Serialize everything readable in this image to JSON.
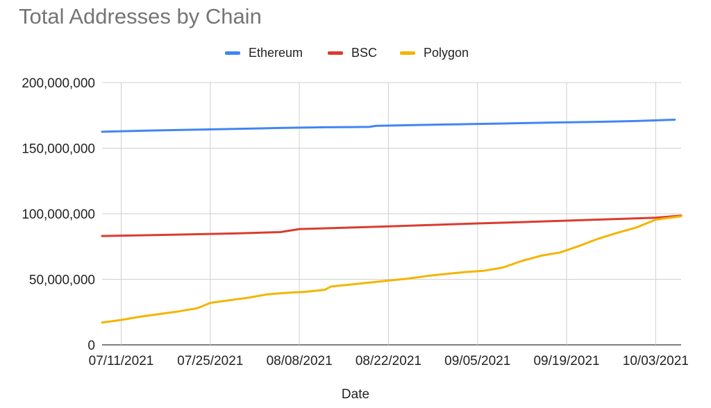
{
  "chart_data": {
    "type": "line",
    "title": "Total Addresses by Chain",
    "xlabel": "Date",
    "ylabel": "",
    "ylim": [
      0,
      200000000
    ],
    "y_ticks": [
      0,
      50000000,
      100000000,
      150000000,
      200000000
    ],
    "y_tick_labels": [
      "0",
      "50,000,000",
      "100,000,000",
      "150,000,000",
      "200,000,000"
    ],
    "x_ticks": [
      "2021-07-11",
      "2021-07-25",
      "2021-08-08",
      "2021-08-22",
      "2021-09-05",
      "2021-09-19",
      "2021-10-03"
    ],
    "x_tick_labels": [
      "07/11/2021",
      "07/25/2021",
      "08/08/2021",
      "08/22/2021",
      "09/05/2021",
      "09/19/2021",
      "10/03/2021"
    ],
    "x_range": [
      "2021-07-08",
      "2021-10-07"
    ],
    "grid": true,
    "legend_position": "top",
    "series": [
      {
        "name": "Ethereum",
        "color": "#4285f4",
        "points": [
          [
            "2021-07-08",
            162500000
          ],
          [
            "2021-07-15",
            163400000
          ],
          [
            "2021-07-22",
            164000000
          ],
          [
            "2021-07-29",
            164700000
          ],
          [
            "2021-08-05",
            165400000
          ],
          [
            "2021-08-12",
            165900000
          ],
          [
            "2021-08-19",
            166200000
          ],
          [
            "2021-08-20",
            167000000
          ],
          [
            "2021-08-26",
            167600000
          ],
          [
            "2021-09-02",
            168200000
          ],
          [
            "2021-09-09",
            168800000
          ],
          [
            "2021-09-16",
            169400000
          ],
          [
            "2021-09-23",
            170000000
          ],
          [
            "2021-09-30",
            170700000
          ],
          [
            "2021-10-06",
            171700000
          ]
        ]
      },
      {
        "name": "BSC",
        "color": "#db3b2f",
        "points": [
          [
            "2021-07-08",
            83000000
          ],
          [
            "2021-07-15",
            83600000
          ],
          [
            "2021-07-22",
            84300000
          ],
          [
            "2021-07-29",
            85000000
          ],
          [
            "2021-08-05",
            86000000
          ],
          [
            "2021-08-08",
            88300000
          ],
          [
            "2021-08-15",
            89300000
          ],
          [
            "2021-08-22",
            90300000
          ],
          [
            "2021-08-29",
            91500000
          ],
          [
            "2021-09-05",
            92600000
          ],
          [
            "2021-09-12",
            93600000
          ],
          [
            "2021-09-19",
            94700000
          ],
          [
            "2021-09-26",
            95800000
          ],
          [
            "2021-10-03",
            97000000
          ],
          [
            "2021-10-07",
            98500000
          ]
        ]
      },
      {
        "name": "Polygon",
        "color": "#f5b400",
        "points": [
          [
            "2021-07-08",
            17000000
          ],
          [
            "2021-07-11",
            19000000
          ],
          [
            "2021-07-14",
            21500000
          ],
          [
            "2021-07-17",
            23500000
          ],
          [
            "2021-07-20",
            25500000
          ],
          [
            "2021-07-23",
            28000000
          ],
          [
            "2021-07-25",
            32000000
          ],
          [
            "2021-07-28",
            34000000
          ],
          [
            "2021-07-31",
            36000000
          ],
          [
            "2021-08-03",
            38500000
          ],
          [
            "2021-08-06",
            39700000
          ],
          [
            "2021-08-09",
            40500000
          ],
          [
            "2021-08-12",
            42000000
          ],
          [
            "2021-08-13",
            44500000
          ],
          [
            "2021-08-16",
            46000000
          ],
          [
            "2021-08-19",
            47500000
          ],
          [
            "2021-08-22",
            49000000
          ],
          [
            "2021-08-25",
            50500000
          ],
          [
            "2021-08-28",
            52500000
          ],
          [
            "2021-08-31",
            54000000
          ],
          [
            "2021-09-03",
            55500000
          ],
          [
            "2021-09-06",
            56500000
          ],
          [
            "2021-09-09",
            59000000
          ],
          [
            "2021-09-12",
            64000000
          ],
          [
            "2021-09-15",
            68000000
          ],
          [
            "2021-09-18",
            70500000
          ],
          [
            "2021-09-21",
            75500000
          ],
          [
            "2021-09-24",
            81000000
          ],
          [
            "2021-09-27",
            85500000
          ],
          [
            "2021-09-30",
            89500000
          ],
          [
            "2021-10-03",
            95500000
          ],
          [
            "2021-10-07",
            98000000
          ]
        ]
      }
    ]
  }
}
